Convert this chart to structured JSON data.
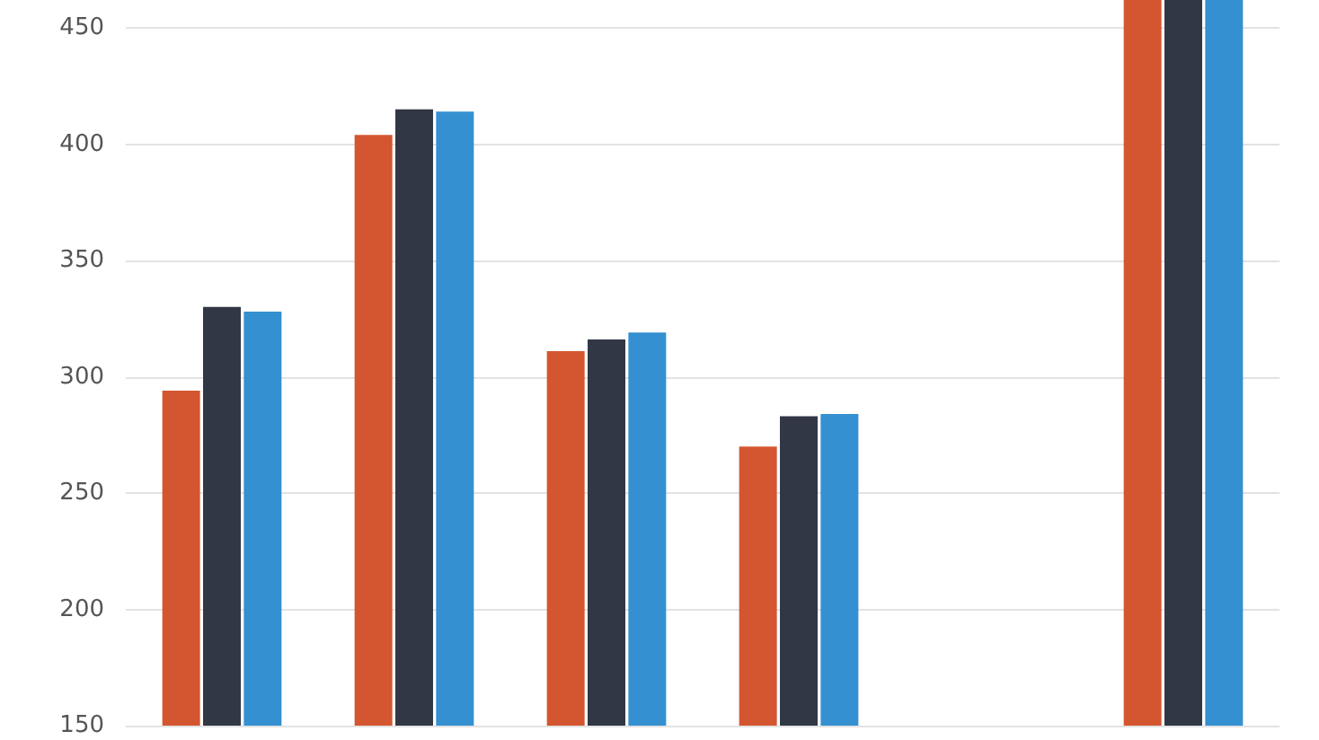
{
  "chart_data": {
    "type": "bar",
    "categories": [
      null,
      null,
      null,
      null,
      null,
      null
    ],
    "series": [
      {
        "color": "#d35630",
        "values": [
          294,
          404,
          311,
          270,
          null,
          462
        ]
      },
      {
        "color": "#323745",
        "values": [
          330,
          415,
          316,
          283,
          null,
          462
        ]
      },
      {
        "color": "#3490d0",
        "values": [
          328,
          414,
          319,
          284,
          null,
          462
        ]
      }
    ],
    "ylim": [
      150,
      462
    ],
    "yticks": [
      150,
      200,
      250,
      300,
      350,
      400,
      450
    ],
    "grid": "y"
  }
}
